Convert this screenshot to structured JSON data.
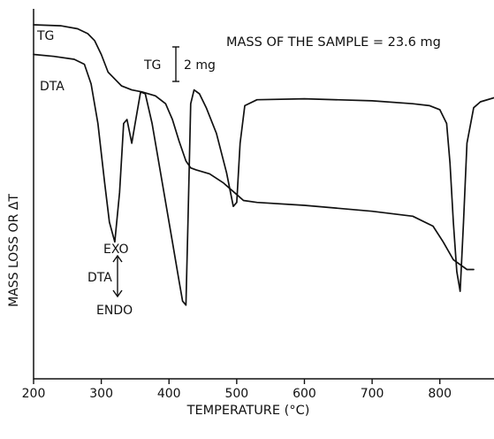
{
  "chart_data": {
    "type": "line",
    "title": "",
    "xlabel": "TEMPERATURE (°C)",
    "ylabel": "MASS LOSS OR ΔT",
    "xlim": [
      200,
      880
    ],
    "x_ticks": [
      "200",
      "300",
      "400",
      "500",
      "600",
      "700",
      "800"
    ],
    "y_ticks": [],
    "grid": false,
    "annotations": {
      "sample_mass": "MASS OF THE SAMPLE = 23.6 mg",
      "tg_scale_label": "TG",
      "tg_scale_value": "2 mg",
      "dta_direction_label": "DTA",
      "exo_label": "EXO",
      "endo_label": "ENDO"
    },
    "series": [
      {
        "name": "TG",
        "x": [
          200,
          240,
          265,
          280,
          290,
          300,
          310,
          330,
          345,
          360,
          380,
          395,
          405,
          415,
          425,
          432,
          440,
          460,
          480,
          500,
          510,
          530,
          600,
          700,
          760,
          790,
          805,
          820,
          840,
          850
        ],
        "y": [
          0.0,
          0.05,
          0.2,
          0.45,
          0.8,
          1.5,
          2.4,
          3.1,
          3.3,
          3.4,
          3.6,
          4.0,
          4.8,
          5.9,
          6.9,
          7.25,
          7.35,
          7.55,
          8.0,
          8.6,
          8.9,
          9.0,
          9.15,
          9.45,
          9.7,
          10.2,
          11.0,
          11.9,
          12.4,
          12.4
        ]
      },
      {
        "name": "DTA",
        "x": [
          200,
          230,
          260,
          275,
          285,
          295,
          305,
          312,
          320,
          327,
          333,
          338,
          345,
          350,
          358,
          365,
          375,
          390,
          405,
          415,
          420,
          425,
          428,
          432,
          437,
          445,
          455,
          470,
          485,
          495,
          500,
          505,
          512,
          530,
          600,
          700,
          760,
          785,
          800,
          810,
          815,
          820,
          825,
          830,
          835,
          840,
          850,
          860,
          880
        ],
        "y": [
          1.5,
          1.6,
          1.75,
          2.0,
          3.0,
          5.0,
          8.0,
          10.0,
          11.0,
          8.5,
          5.0,
          4.8,
          6.0,
          5.0,
          3.4,
          3.5,
          5.0,
          8.0,
          11.0,
          13.0,
          14.0,
          14.2,
          10.0,
          4.0,
          3.3,
          3.5,
          4.2,
          5.5,
          7.5,
          9.2,
          9.0,
          6.0,
          4.1,
          3.8,
          3.75,
          3.85,
          4.0,
          4.1,
          4.3,
          5.0,
          7.0,
          10.0,
          12.5,
          13.5,
          10.0,
          6.0,
          4.2,
          3.9,
          3.7
        ]
      }
    ]
  }
}
